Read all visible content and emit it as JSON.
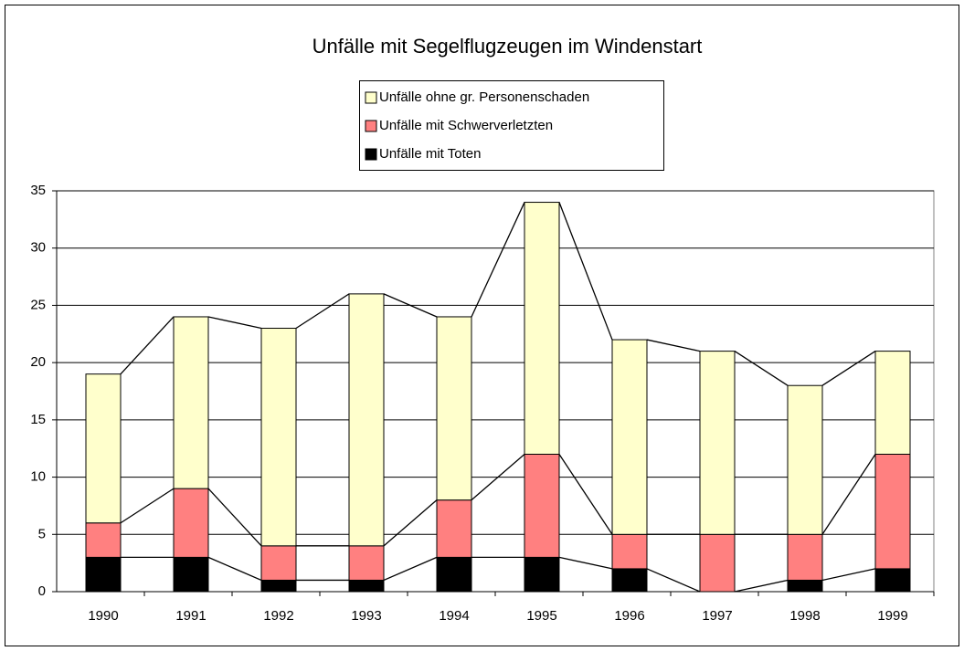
{
  "chart_data": {
    "type": "stacked_bar",
    "title": "Unfälle mit Segelflugzeugen im Windenstart",
    "categories": [
      "1990",
      "1991",
      "1992",
      "1993",
      "1994",
      "1995",
      "1996",
      "1997",
      "1998",
      "1999"
    ],
    "series": [
      {
        "name": "Unfälle mit Toten",
        "color": "#000000",
        "values": [
          3,
          3,
          1,
          1,
          3,
          3,
          2,
          0,
          1,
          2
        ]
      },
      {
        "name": "Unfälle mit Schwerverletzten",
        "color": "#ff8080",
        "values": [
          3,
          6,
          3,
          3,
          5,
          9,
          3,
          5,
          4,
          10
        ]
      },
      {
        "name": "Unfälle ohne gr. Personenschaden",
        "color": "#ffffcc",
        "values": [
          13,
          15,
          19,
          22,
          16,
          22,
          17,
          16,
          13,
          9
        ]
      }
    ],
    "ylim": [
      0,
      35
    ],
    "yticks": [
      0,
      5,
      10,
      15,
      20,
      25,
      30,
      35
    ],
    "grid": true,
    "legend": "top"
  }
}
